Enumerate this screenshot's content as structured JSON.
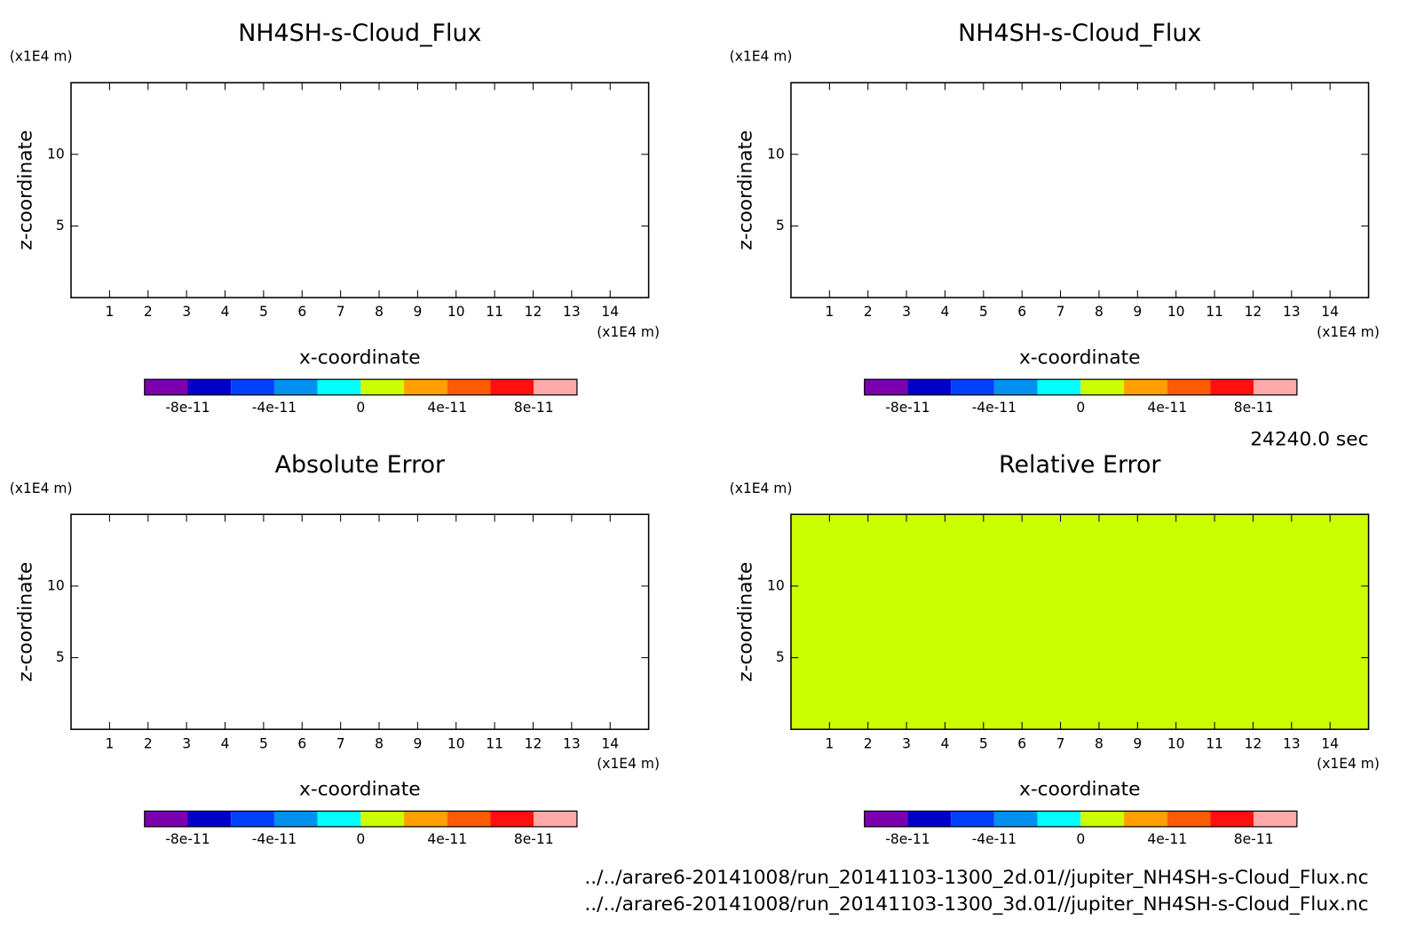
{
  "chart_data": [
    {
      "type": "heatmap",
      "title": "NH4SH-s-Cloud_Flux",
      "xlabel": "x-coordinate",
      "ylabel": "z-coordinate",
      "xunit": "(x1E4 m)",
      "yunit": "(x1E4 m)",
      "xlim": [
        0,
        15
      ],
      "ylim": [
        0,
        15
      ],
      "xticks": [
        1,
        2,
        3,
        4,
        5,
        6,
        7,
        8,
        9,
        10,
        11,
        12,
        13,
        14
      ],
      "yticks": [
        5,
        10
      ],
      "colors": [
        "#7d00b0",
        "#0000c8",
        "#0040ff",
        "#0090f0",
        "#00ffff",
        "#ccff00",
        "#ffa000",
        "#ff5a00",
        "#ff1010",
        "#ffaaaa"
      ],
      "clim": [
        -1e-10,
        1e-10
      ],
      "cticks": [
        -8e-11,
        -4e-11,
        0,
        4e-11,
        8e-11
      ]
    },
    {
      "type": "heatmap",
      "title": "NH4SH-s-Cloud_Flux",
      "xlabel": "x-coordinate",
      "ylabel": "z-coordinate",
      "xunit": "(x1E4 m)",
      "yunit": "(x1E4 m)",
      "xlim": [
        0,
        15
      ],
      "ylim": [
        0,
        15
      ],
      "xticks": [
        1,
        2,
        3,
        4,
        5,
        6,
        7,
        8,
        9,
        10,
        11,
        12,
        13,
        14
      ],
      "yticks": [
        5,
        10
      ],
      "colors": [
        "#7d00b0",
        "#0000c8",
        "#0040ff",
        "#0090f0",
        "#00ffff",
        "#ccff00",
        "#ffa000",
        "#ff5a00",
        "#ff1010",
        "#ffaaaa"
      ],
      "clim": [
        -1e-10,
        1e-10
      ],
      "cticks": [
        -8e-11,
        -4e-11,
        0,
        4e-11,
        8e-11
      ]
    },
    {
      "type": "heatmap",
      "title": "Absolute Error",
      "xlabel": "x-coordinate",
      "ylabel": "z-coordinate",
      "xunit": "(x1E4 m)",
      "yunit": "(x1E4 m)",
      "xlim": [
        0,
        15
      ],
      "ylim": [
        0,
        15
      ],
      "xticks": [
        1,
        2,
        3,
        4,
        5,
        6,
        7,
        8,
        9,
        10,
        11,
        12,
        13,
        14
      ],
      "yticks": [
        5,
        10
      ],
      "colors": [
        "#7d00b0",
        "#0000c8",
        "#0040ff",
        "#0090f0",
        "#00ffff",
        "#ccff00",
        "#ffa000",
        "#ff5a00",
        "#ff1010",
        "#ffaaaa"
      ],
      "clim": [
        -1e-10,
        1e-10
      ],
      "cticks": [
        -8e-11,
        -4e-11,
        0,
        4e-11,
        8e-11
      ]
    },
    {
      "type": "heatmap",
      "title": "Relative Error",
      "xlabel": "x-coordinate",
      "ylabel": "z-coordinate",
      "xunit": "(x1E4 m)",
      "yunit": "(x1E4 m)",
      "xlim": [
        0,
        15
      ],
      "ylim": [
        0,
        15
      ],
      "xticks": [
        1,
        2,
        3,
        4,
        5,
        6,
        7,
        8,
        9,
        10,
        11,
        12,
        13,
        14
      ],
      "yticks": [
        5,
        10
      ],
      "values": [
        [
          0
        ]
      ],
      "colors": [
        "#7d00b0",
        "#0000c8",
        "#0040ff",
        "#0090f0",
        "#00ffff",
        "#ccff00",
        "#ffa000",
        "#ff5a00",
        "#ff1010",
        "#ffaaaa"
      ],
      "clim": [
        -1e-10,
        1e-10
      ],
      "cticks": [
        -8e-11,
        -4e-11,
        0,
        4e-11,
        8e-11
      ]
    }
  ],
  "time_label": "24240.0 sec",
  "files": [
    "../../arare6-20141008/run_20141103-1300_2d.01//jupiter_NH4SH-s-Cloud_Flux.nc",
    "../../arare6-20141008/run_20141103-1300_3d.01//jupiter_NH4SH-s-Cloud_Flux.nc"
  ]
}
